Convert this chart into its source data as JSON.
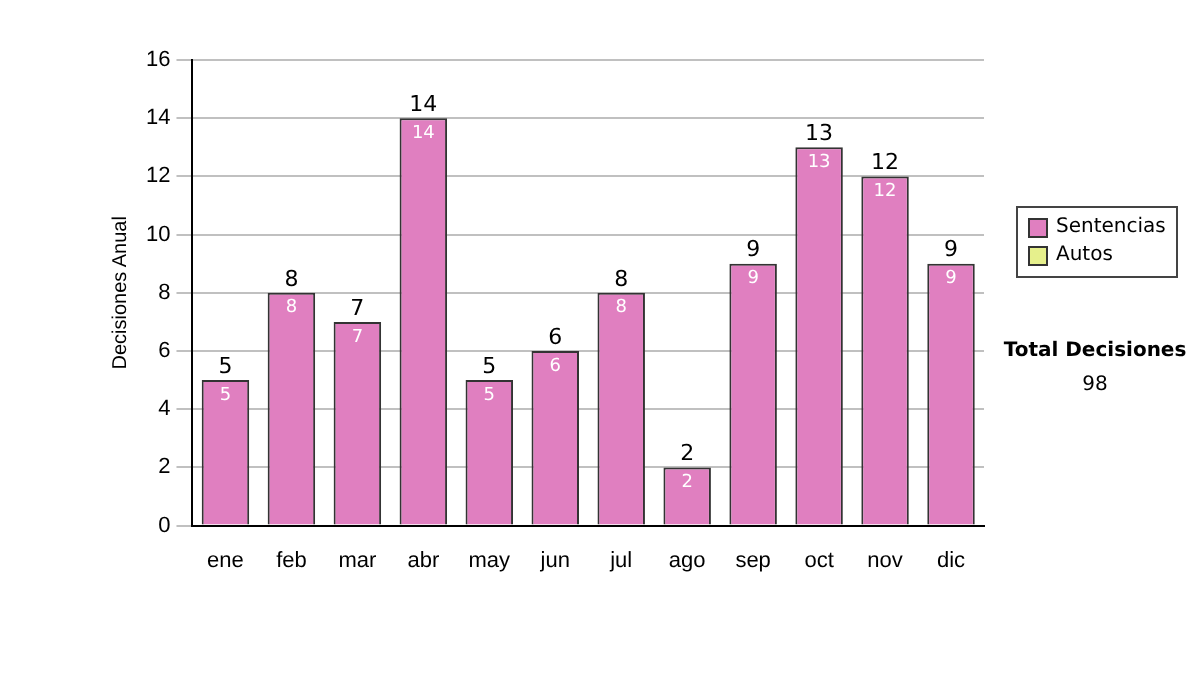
{
  "chart_data": {
    "type": "bar",
    "ylabel": "Decisiones Anual",
    "categories": [
      "ene",
      "feb",
      "mar",
      "abr",
      "may",
      "jun",
      "jul",
      "ago",
      "sep",
      "oct",
      "nov",
      "dic"
    ],
    "series": [
      {
        "name": "Sentencias",
        "color": "#e07fc0",
        "values": [
          5,
          8,
          7,
          14,
          5,
          6,
          8,
          2,
          9,
          13,
          12,
          9
        ],
        "value_labels": [
          "5",
          "8",
          "7",
          "14",
          "5",
          "6",
          "8",
          "2",
          "9",
          "13",
          "12",
          "9"
        ]
      },
      {
        "name": "Autos",
        "color": "#e6f08c",
        "values": [
          0,
          0,
          0,
          0,
          0,
          0,
          0,
          0,
          0,
          0,
          0,
          0
        ],
        "value_labels": [
          null,
          null,
          null,
          null,
          null,
          null,
          null,
          null,
          null,
          null,
          null,
          null
        ]
      }
    ],
    "stacked": true,
    "totals": [
      "5",
      "8",
      "7",
      "14",
      "5",
      "6",
      "8",
      "2",
      "9",
      "13",
      "12",
      "9"
    ],
    "ylim": [
      0,
      16
    ],
    "yticks": [
      0,
      2,
      4,
      6,
      8,
      10,
      12,
      14,
      16
    ],
    "grid": "y",
    "legend": "right",
    "annotations": [
      "Total Decisiones",
      "98"
    ]
  }
}
